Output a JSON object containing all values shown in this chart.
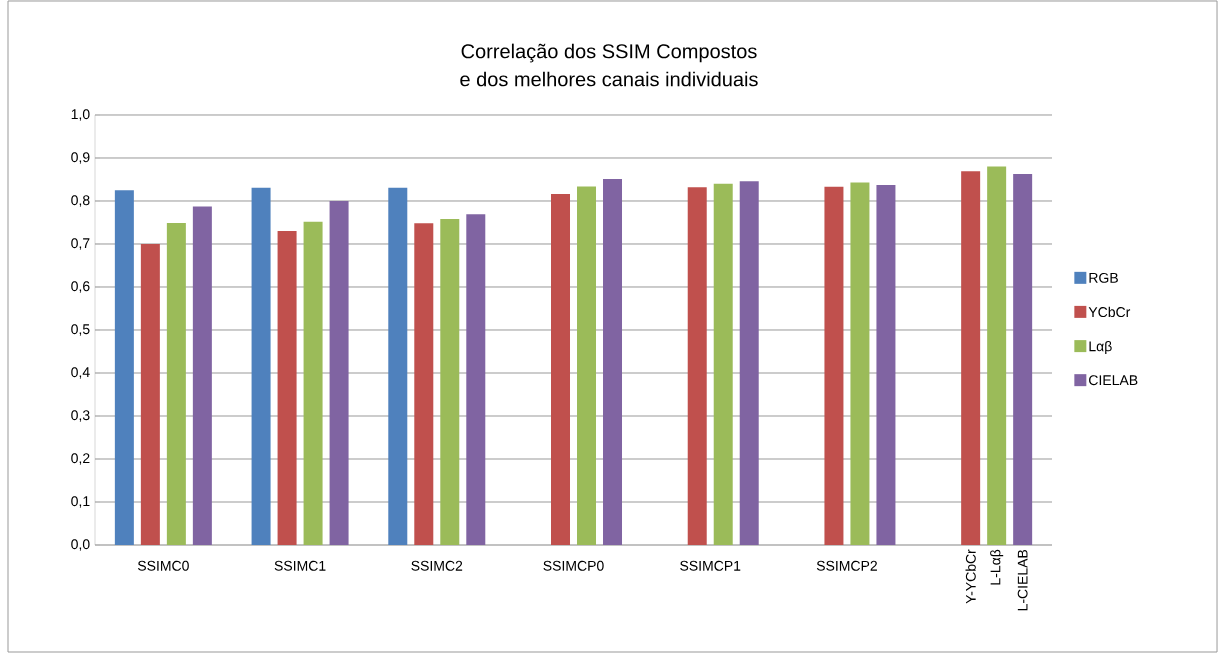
{
  "chart_data": {
    "type": "bar",
    "title": "Correlação dos SSIM Compostos\ne dos melhores canais individuais",
    "categories": [
      "SSIMC0",
      "SSIMC1",
      "SSIMC2",
      "SSIMCP0",
      "SSIMCP1",
      "SSIMCP2",
      null
    ],
    "series": [
      {
        "name": "RGB",
        "color": "#4f81bd",
        "values": [
          0.825,
          0.831,
          0.831,
          null,
          null,
          null,
          null
        ]
      },
      {
        "name": "YCbCr",
        "color": "#c0504d",
        "values": [
          0.7,
          0.73,
          0.748,
          0.816,
          0.832,
          0.833,
          0.869
        ]
      },
      {
        "name": "Lαβ",
        "color": "#9bbb59",
        "values": [
          0.749,
          0.752,
          0.758,
          0.834,
          0.84,
          0.843,
          0.88
        ]
      },
      {
        "name": "CIELAB",
        "color": "#8064a2",
        "values": [
          0.787,
          0.8,
          0.769,
          0.851,
          0.846,
          0.837,
          0.863
        ]
      }
    ],
    "annotations": [
      "Y-YCbCr",
      "L-Lαβ",
      "L-CIELAB"
    ],
    "ylim": [
      0,
      1
    ],
    "yticks": [
      {
        "value": 0,
        "label": "0,0"
      },
      {
        "value": 0.1,
        "label": "0,1"
      },
      {
        "value": 0.2,
        "label": "0,2"
      },
      {
        "value": 0.3,
        "label": "0,3"
      },
      {
        "value": 0.4,
        "label": "0,4"
      },
      {
        "value": 0.5,
        "label": "0,5"
      },
      {
        "value": 0.6,
        "label": "0,6"
      },
      {
        "value": 0.7,
        "label": "0,7"
      },
      {
        "value": 0.8,
        "label": "0,8"
      },
      {
        "value": 0.9,
        "label": "0,9"
      },
      {
        "value": 1,
        "label": "1,0"
      }
    ],
    "grid": "y",
    "legend": "right"
  }
}
